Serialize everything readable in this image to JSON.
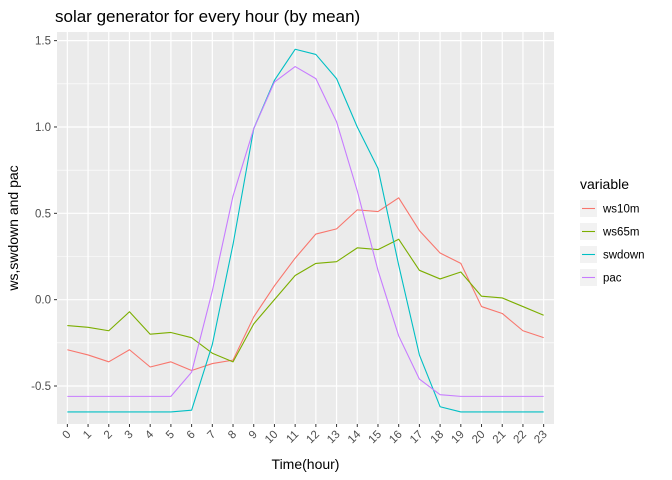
{
  "chart_data": {
    "type": "line",
    "title": "solar generator for every hour (by mean)",
    "xlabel": "Time(hour)",
    "ylabel": "ws,swdown and pac",
    "x": [
      0,
      1,
      2,
      3,
      4,
      5,
      6,
      7,
      8,
      9,
      10,
      11,
      12,
      13,
      14,
      15,
      16,
      17,
      18,
      19,
      20,
      21,
      22,
      23
    ],
    "xticks": [
      "0",
      "1",
      "2",
      "3",
      "4",
      "5",
      "6",
      "7",
      "8",
      "9",
      "10",
      "11",
      "12",
      "13",
      "14",
      "15",
      "16",
      "17",
      "18",
      "19",
      "20",
      "21",
      "22",
      "23"
    ],
    "yticks": [
      "-0.5",
      "0.0",
      "0.5",
      "1.0",
      "1.5"
    ],
    "ytick_values": [
      -0.5,
      0.0,
      0.5,
      1.0,
      1.5
    ],
    "xlim": [
      -0.5,
      23.5
    ],
    "ylim": [
      -0.72,
      1.55
    ],
    "grid": true,
    "legend": {
      "title": "variable",
      "position": "right"
    },
    "series": [
      {
        "name": "ws10m",
        "color": "#F8766D",
        "values": [
          -0.29,
          -0.32,
          -0.36,
          -0.29,
          -0.39,
          -0.36,
          -0.41,
          -0.37,
          -0.35,
          -0.1,
          0.08,
          0.24,
          0.38,
          0.41,
          0.52,
          0.51,
          0.59,
          0.4,
          0.27,
          0.21,
          -0.04,
          -0.08,
          -0.18,
          -0.22
        ]
      },
      {
        "name": "ws65m",
        "color": "#7CAE00",
        "values": [
          -0.15,
          -0.16,
          -0.18,
          -0.07,
          -0.2,
          -0.19,
          -0.22,
          -0.31,
          -0.36,
          -0.14,
          0.0,
          0.14,
          0.21,
          0.22,
          0.3,
          0.29,
          0.35,
          0.17,
          0.12,
          0.16,
          0.02,
          0.01,
          -0.04,
          -0.09
        ]
      },
      {
        "name": "swdown",
        "color": "#00BFC4",
        "values": [
          -0.65,
          -0.65,
          -0.65,
          -0.65,
          -0.65,
          -0.65,
          -0.64,
          -0.26,
          0.32,
          0.99,
          1.27,
          1.45,
          1.42,
          1.28,
          1.0,
          0.76,
          0.2,
          -0.32,
          -0.62,
          -0.65,
          -0.65,
          -0.65,
          -0.65,
          -0.65
        ]
      },
      {
        "name": "pac",
        "color": "#C77CFF",
        "values": [
          -0.56,
          -0.56,
          -0.56,
          -0.56,
          -0.56,
          -0.56,
          -0.42,
          0.05,
          0.6,
          0.99,
          1.26,
          1.35,
          1.28,
          1.03,
          0.63,
          0.17,
          -0.21,
          -0.46,
          -0.55,
          -0.56,
          -0.56,
          -0.56,
          -0.56,
          -0.56
        ]
      }
    ]
  }
}
